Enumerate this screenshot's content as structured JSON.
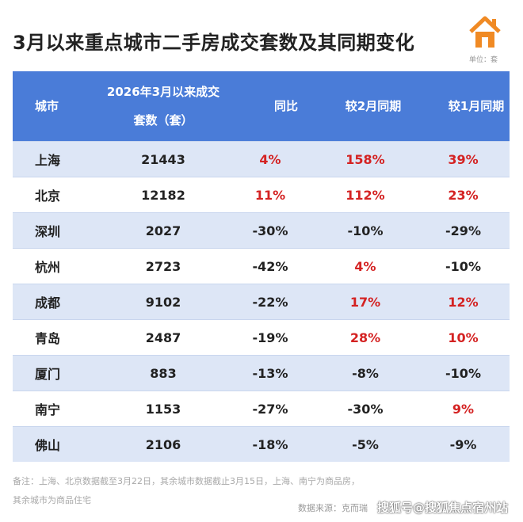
{
  "header": {
    "title": "3月以来重点城市二手房成交套数及其同期变化",
    "unit": "单位：套"
  },
  "table": {
    "columns": [
      "城市",
      "2026年3月以来成交套数（套）",
      "同比",
      "较2月同期",
      "较1月同期"
    ],
    "rows": [
      [
        "上海",
        "21443",
        "4%",
        "158%",
        "39%"
      ],
      [
        "北京",
        "12182",
        "11%",
        "112%",
        "23%"
      ],
      [
        "深圳",
        "2027",
        "-30%",
        "-10%",
        "-29%"
      ],
      [
        "杭州",
        "2723",
        "-42%",
        "4%",
        "-10%"
      ],
      [
        "成都",
        "9102",
        "-22%",
        "17%",
        "12%"
      ],
      [
        "青岛",
        "2487",
        "-19%",
        "28%",
        "10%"
      ],
      [
        "厦门",
        "883",
        "-13%",
        "-8%",
        "-10%"
      ],
      [
        "南宁",
        "1153",
        "-27%",
        "-30%",
        "9%"
      ],
      [
        "佛山",
        "2106",
        "-18%",
        "-5%",
        "-9%"
      ]
    ]
  },
  "footer": {
    "note": "备注：上海、北京数据截至3月22日，其余城市数据截止3月15日，上海、南宁为商品房，其余城市为商品住宅",
    "source": "数据来源：克而瑞",
    "watermark": "搜狐号@搜狐焦点宿州站"
  }
}
